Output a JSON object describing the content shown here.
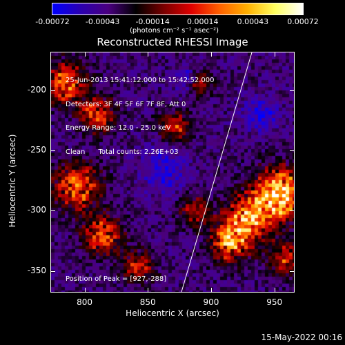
{
  "colorbar": {
    "ticks": [
      "-0.00072",
      "-0.00043",
      "-0.00014",
      "0.00014",
      "0.00043",
      "0.00072"
    ],
    "units_label": "(photons cm⁻² s⁻¹ asec⁻²)",
    "stops": [
      "#0000ff",
      "#2a00b0",
      "#4a0080",
      "#000000",
      "#7a0000",
      "#e00000",
      "#ff6000",
      "#ffb000",
      "#ffff60",
      "#ffffff"
    ]
  },
  "plot": {
    "title": "Reconstructed RHESSI Image",
    "info_lines": [
      "25-Jun-2013 15:41:12.000 to 15:42:52.000",
      "Detectors: 3F 4F 5F 6F 7F 8F, Att 0",
      "Energy Range: 12.0 - 25.0 keV",
      "Clean      Total counts: 2.26E+03"
    ],
    "peak_label": "Position of Peak = [927,-288]",
    "xlabel": "Heliocentric X (arcsec)",
    "ylabel": "Heliocentric Y (arcsec)",
    "xticks": [
      "800",
      "850",
      "900",
      "950"
    ],
    "yticks": [
      "-200",
      "-250",
      "-300",
      "-350"
    ],
    "xlim": [
      773,
      966
    ],
    "ylim": [
      -368,
      -168
    ],
    "peak": [
      927,
      -288
    ]
  },
  "footer": {
    "timestamp": "15-May-2022 00:16"
  }
}
